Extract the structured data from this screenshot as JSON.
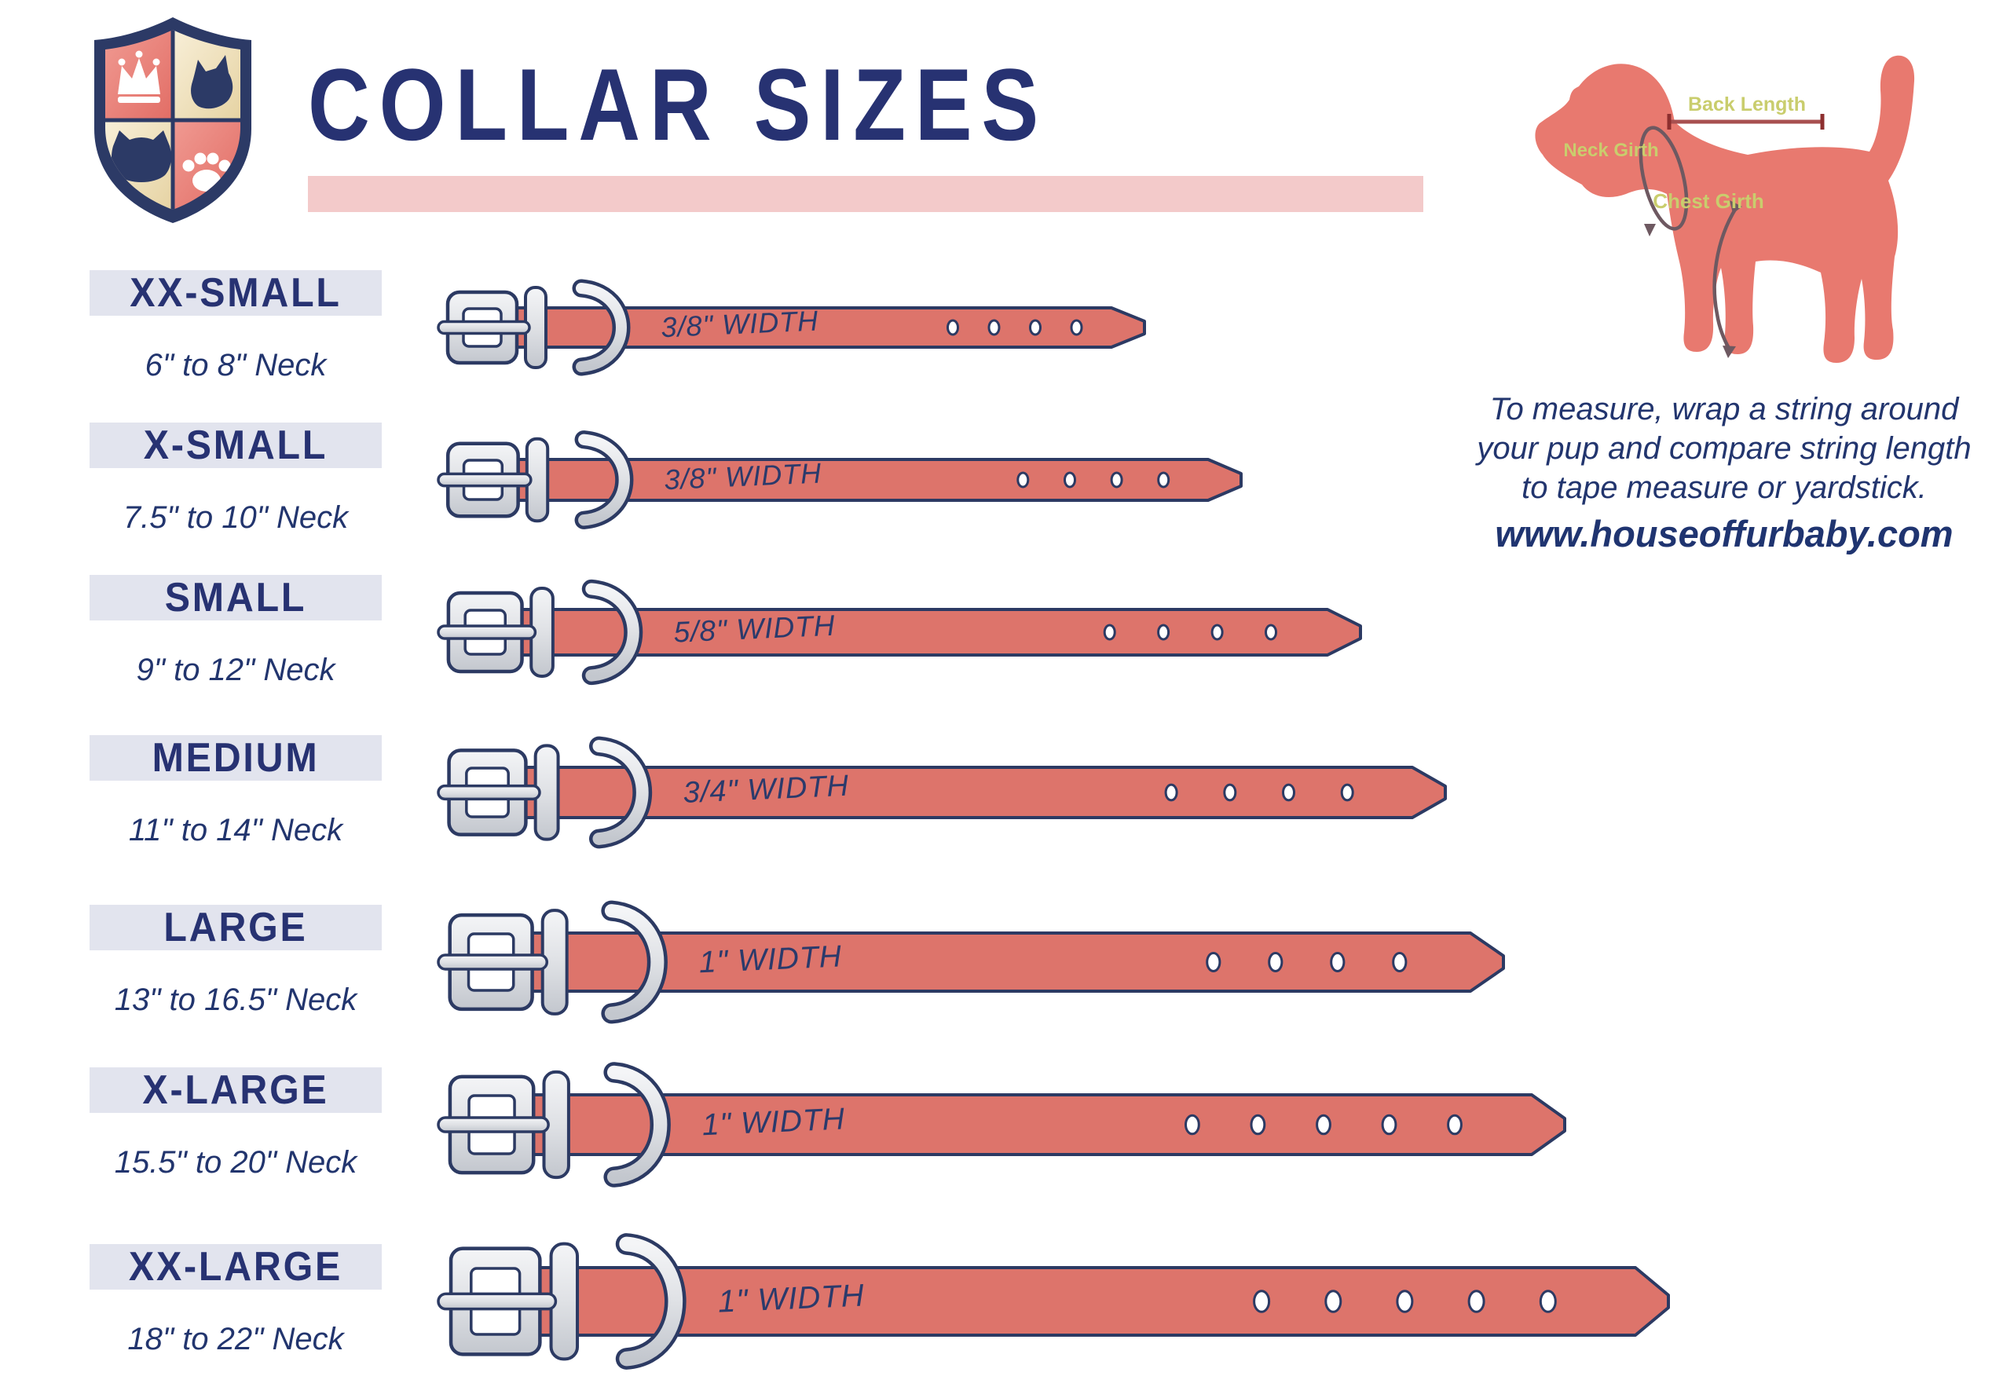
{
  "header": {
    "title": "COLLAR SIZES"
  },
  "logo": {
    "name": "house of fur baby crest",
    "elements": [
      "crown",
      "dog-head",
      "cat-head",
      "paw-print"
    ]
  },
  "measure_guide": {
    "diagram_labels": {
      "back": "Back Length",
      "neck": "Neck Girth",
      "chest": "Chest Girth"
    },
    "instructions": [
      "To measure, wrap a string around",
      "your pup and compare string length",
      "to tape measure or yardstick."
    ],
    "website": "www.houseoffurbaby.com"
  },
  "sizes": [
    {
      "label": "XX-SMALL",
      "neck": "6\" to 8\" Neck",
      "width_label": "3/8\" WIDTH",
      "holes": 4,
      "strap_h": 50,
      "length": 905
    },
    {
      "label": "X-SMALL",
      "neck": "7.5\" to 10\" Neck",
      "width_label": "3/8\" WIDTH",
      "holes": 4,
      "strap_h": 52,
      "length": 1028
    },
    {
      "label": "SMALL",
      "neck": "9\" to 12\" Neck",
      "width_label": "5/8\" WIDTH",
      "holes": 4,
      "strap_h": 58,
      "length": 1180
    },
    {
      "label": "MEDIUM",
      "neck": "11\" to 14\" Neck",
      "width_label": "3/4\" WIDTH",
      "holes": 4,
      "strap_h": 64,
      "length": 1288
    },
    {
      "label": "LARGE",
      "neck": "13\" to 16.5\" Neck",
      "width_label": "1\" WIDTH",
      "holes": 4,
      "strap_h": 74,
      "length": 1362
    },
    {
      "label": "X-LARGE",
      "neck": "15.5\" to 20\" Neck",
      "width_label": "1\" WIDTH",
      "holes": 5,
      "strap_h": 76,
      "length": 1440
    },
    {
      "label": "XX-LARGE",
      "neck": "18\" to 22\" Neck",
      "width_label": "1\" WIDTH",
      "holes": 5,
      "strap_h": 86,
      "length": 1572
    }
  ],
  "colors": {
    "navy": "#273272",
    "outline_navy": "#2c3a63",
    "coral": "#dd746b",
    "dog_coral": "#e8796f",
    "pink_bar": "#f3caca",
    "label_bg": "#e2e4ee",
    "annotation_olive": "#c9cd6d",
    "measure_line": "#a85050",
    "measure_tick": "#8d2f2f",
    "girth_line": "#6e5961"
  }
}
